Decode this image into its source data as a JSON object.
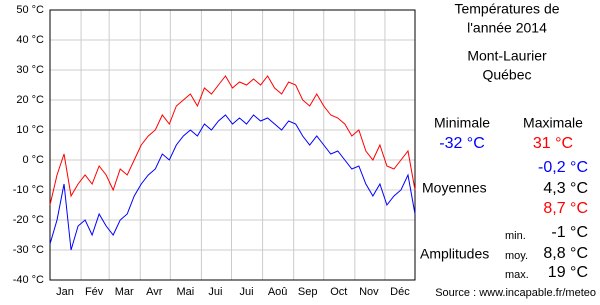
{
  "chart_data": {
    "type": "line",
    "x": [
      1,
      8,
      15,
      22,
      29,
      36,
      43,
      50,
      57,
      64,
      71,
      78,
      85,
      92,
      99,
      106,
      113,
      120,
      127,
      134,
      141,
      148,
      155,
      162,
      169,
      176,
      183,
      190,
      197,
      204,
      211,
      218,
      225,
      232,
      239,
      246,
      253,
      260,
      267,
      274,
      281,
      288,
      295,
      302,
      309,
      316,
      323,
      330,
      337,
      344,
      351,
      358,
      365
    ],
    "series": [
      {
        "name": "Maximale",
        "color": "#ff0000",
        "values": [
          -15,
          -5,
          2,
          -12,
          -8,
          -5,
          -8,
          -2,
          -5,
          -10,
          -3,
          -5,
          0,
          5,
          8,
          10,
          15,
          12,
          18,
          20,
          22,
          18,
          24,
          22,
          25,
          28,
          24,
          26,
          25,
          27,
          25,
          28,
          24,
          22,
          26,
          25,
          20,
          18,
          22,
          18,
          15,
          14,
          12,
          8,
          10,
          3,
          0,
          5,
          -2,
          -3,
          0,
          3,
          -10
        ]
      },
      {
        "name": "Minimale",
        "color": "#0000ff",
        "values": [
          -28,
          -20,
          -8,
          -30,
          -22,
          -20,
          -25,
          -18,
          -22,
          -25,
          -20,
          -18,
          -12,
          -8,
          -5,
          -3,
          2,
          0,
          5,
          8,
          10,
          8,
          12,
          10,
          13,
          15,
          12,
          14,
          12,
          15,
          13,
          14,
          12,
          10,
          13,
          12,
          8,
          5,
          8,
          5,
          2,
          3,
          0,
          -3,
          -2,
          -8,
          -12,
          -8,
          -15,
          -12,
          -10,
          -5,
          -18
        ]
      }
    ],
    "xlim": [
      1,
      365
    ],
    "xticks": [
      {
        "value": 16,
        "label": "Jan"
      },
      {
        "value": 45,
        "label": "Fév"
      },
      {
        "value": 75,
        "label": "Mar"
      },
      {
        "value": 105,
        "label": "Avr"
      },
      {
        "value": 136,
        "label": "Mai"
      },
      {
        "value": 166,
        "label": "Jui"
      },
      {
        "value": 197,
        "label": "Jui"
      },
      {
        "value": 228,
        "label": "Aoû"
      },
      {
        "value": 258,
        "label": "Sep"
      },
      {
        "value": 289,
        "label": "Oct"
      },
      {
        "value": 319,
        "label": "Nov"
      },
      {
        "value": 350,
        "label": "Déc"
      }
    ],
    "xgrid": [
      32,
      60,
      91,
      121,
      152,
      182,
      213,
      244,
      274,
      305,
      335
    ],
    "ylim": [
      -40,
      50
    ],
    "yticks": [
      {
        "value": -40,
        "label": "-40 °C"
      },
      {
        "value": -30,
        "label": "-30 °C"
      },
      {
        "value": -20,
        "label": "-20 °C"
      },
      {
        "value": -10,
        "label": "-10 °C"
      },
      {
        "value": 0,
        "label": "0 °C"
      },
      {
        "value": 10,
        "label": "10 °C"
      },
      {
        "value": 20,
        "label": "20 °C"
      },
      {
        "value": 30,
        "label": "30 °C"
      },
      {
        "value": 40,
        "label": "40 °C"
      },
      {
        "value": 50,
        "label": "50 °C"
      }
    ],
    "grid": true
  },
  "panel": {
    "title": [
      "Températures de",
      "l'année 2014"
    ],
    "place": [
      "Mont-Laurier",
      "Québec"
    ],
    "min_label": "Minimale",
    "max_label": "Maximale",
    "min_value": "-32 °C",
    "max_value": "31 °C",
    "avg_label": "Moyennes",
    "averages": [
      "-0,2 °C",
      "4,3 °C",
      "8,7 °C"
    ],
    "amp_label": "Amplitudes",
    "amp_keys": [
      "min.",
      "moy.",
      "max."
    ],
    "amplitudes": [
      "-1 °C",
      "8,8 °C",
      "19 °C"
    ],
    "source": "Source : www.incapable.fr/meteo"
  }
}
